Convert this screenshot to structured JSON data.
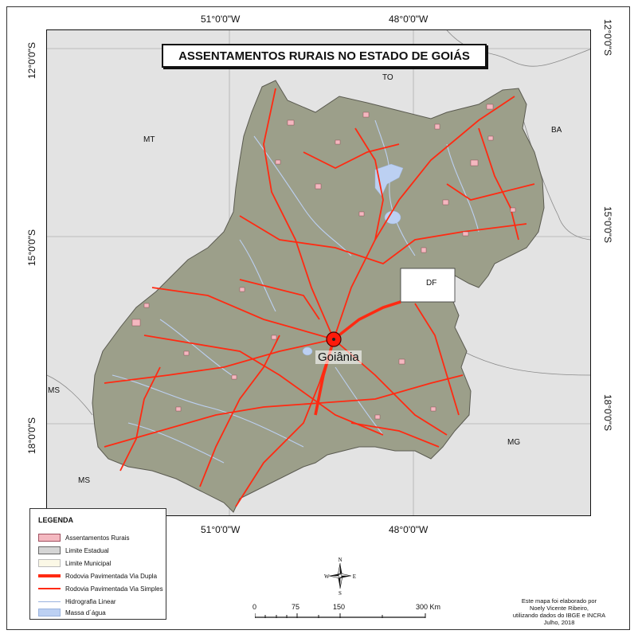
{
  "map": {
    "title": "ASSENTAMENTOS RURAIS NO ESTADO DE GOIÁS",
    "longitudes": [
      "51°0'0\"W",
      "48°0'0\"W"
    ],
    "latitudes": [
      "12°0'0\"S",
      "15°0'0\"S",
      "18°0'0\"S"
    ],
    "neighbors": [
      "TO",
      "MT",
      "BA",
      "DF",
      "MS",
      "MS",
      "MG"
    ],
    "capital": "Goiânia",
    "colors": {
      "state_fill": "#9c9f8a",
      "outside": "#e3e3e3",
      "road": "#ff2a12",
      "water": "#bcd0f2",
      "settlement": "#f4b8c0"
    }
  },
  "legend": {
    "title": "LEGENDA",
    "items": [
      {
        "label": "Assentamentos Rurais",
        "symbol": "pink-fill"
      },
      {
        "label": "Limite Estadual",
        "symbol": "gray-fill"
      },
      {
        "label": "Limite Municipal",
        "symbol": "cream-fill"
      },
      {
        "label": "Rodovia Pavimentada Via Dupla",
        "symbol": "thick-red-line"
      },
      {
        "label": "Rodovia Pavimentada Via Simples",
        "symbol": "thin-red-line"
      },
      {
        "label": "Hidrografia Linear",
        "symbol": "blue-line"
      },
      {
        "label": "Massa d´água",
        "symbol": "blue-fill"
      }
    ]
  },
  "compass": {
    "n": "N",
    "s": "S",
    "e": "E",
    "w": "W"
  },
  "scale": {
    "ticks": [
      "0",
      "75",
      "150",
      "300 Km"
    ]
  },
  "credit": {
    "lines": [
      "Este mapa foi elaborado por",
      "Noely Vicente Ribeiro,",
      "utilizando dados do IBGE e INCRA",
      "Julho, 2018"
    ]
  }
}
